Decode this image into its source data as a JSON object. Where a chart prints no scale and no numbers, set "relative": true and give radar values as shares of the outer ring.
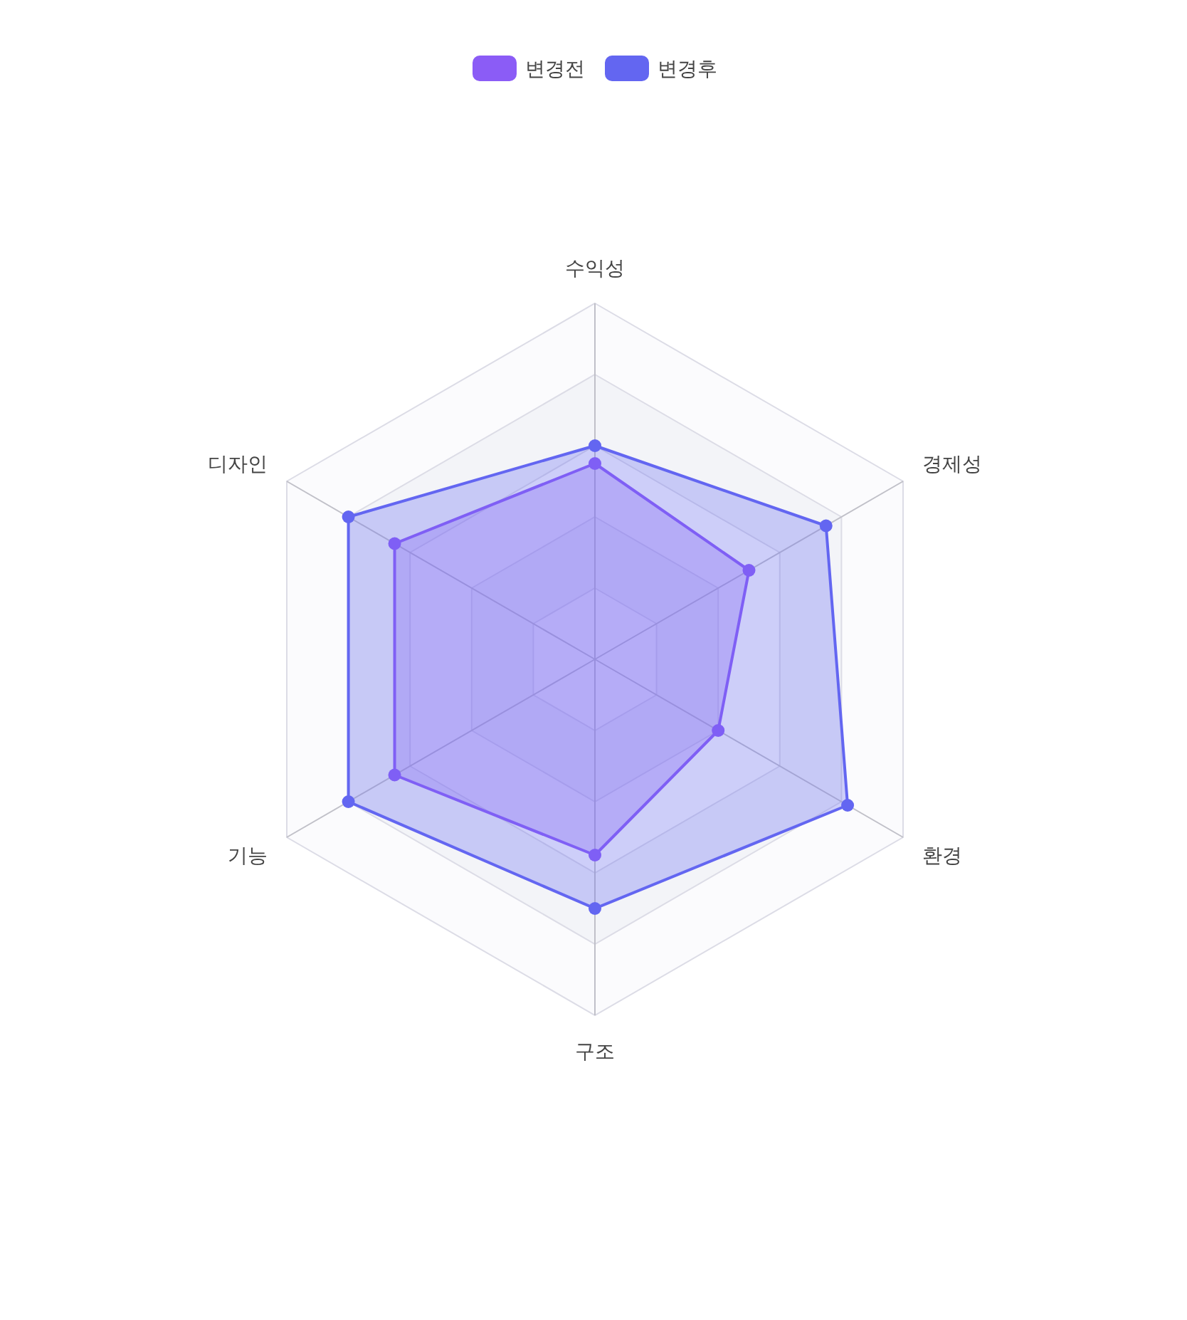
{
  "chart_data": {
    "type": "radar",
    "relative": true,
    "categories": [
      "수익성",
      "경제성",
      "환경",
      "구조",
      "기능",
      "디자인"
    ],
    "series": [
      {
        "name": "변경전",
        "color": "#8b5cf6",
        "values": [
          0.55,
          0.5,
          0.4,
          0.55,
          0.65,
          0.65
        ]
      },
      {
        "name": "변경후",
        "color": "#6366f1",
        "values": [
          0.6,
          0.75,
          0.82,
          0.7,
          0.8,
          0.8
        ]
      }
    ],
    "grid": true,
    "legend": "top",
    "marker": "circle"
  }
}
